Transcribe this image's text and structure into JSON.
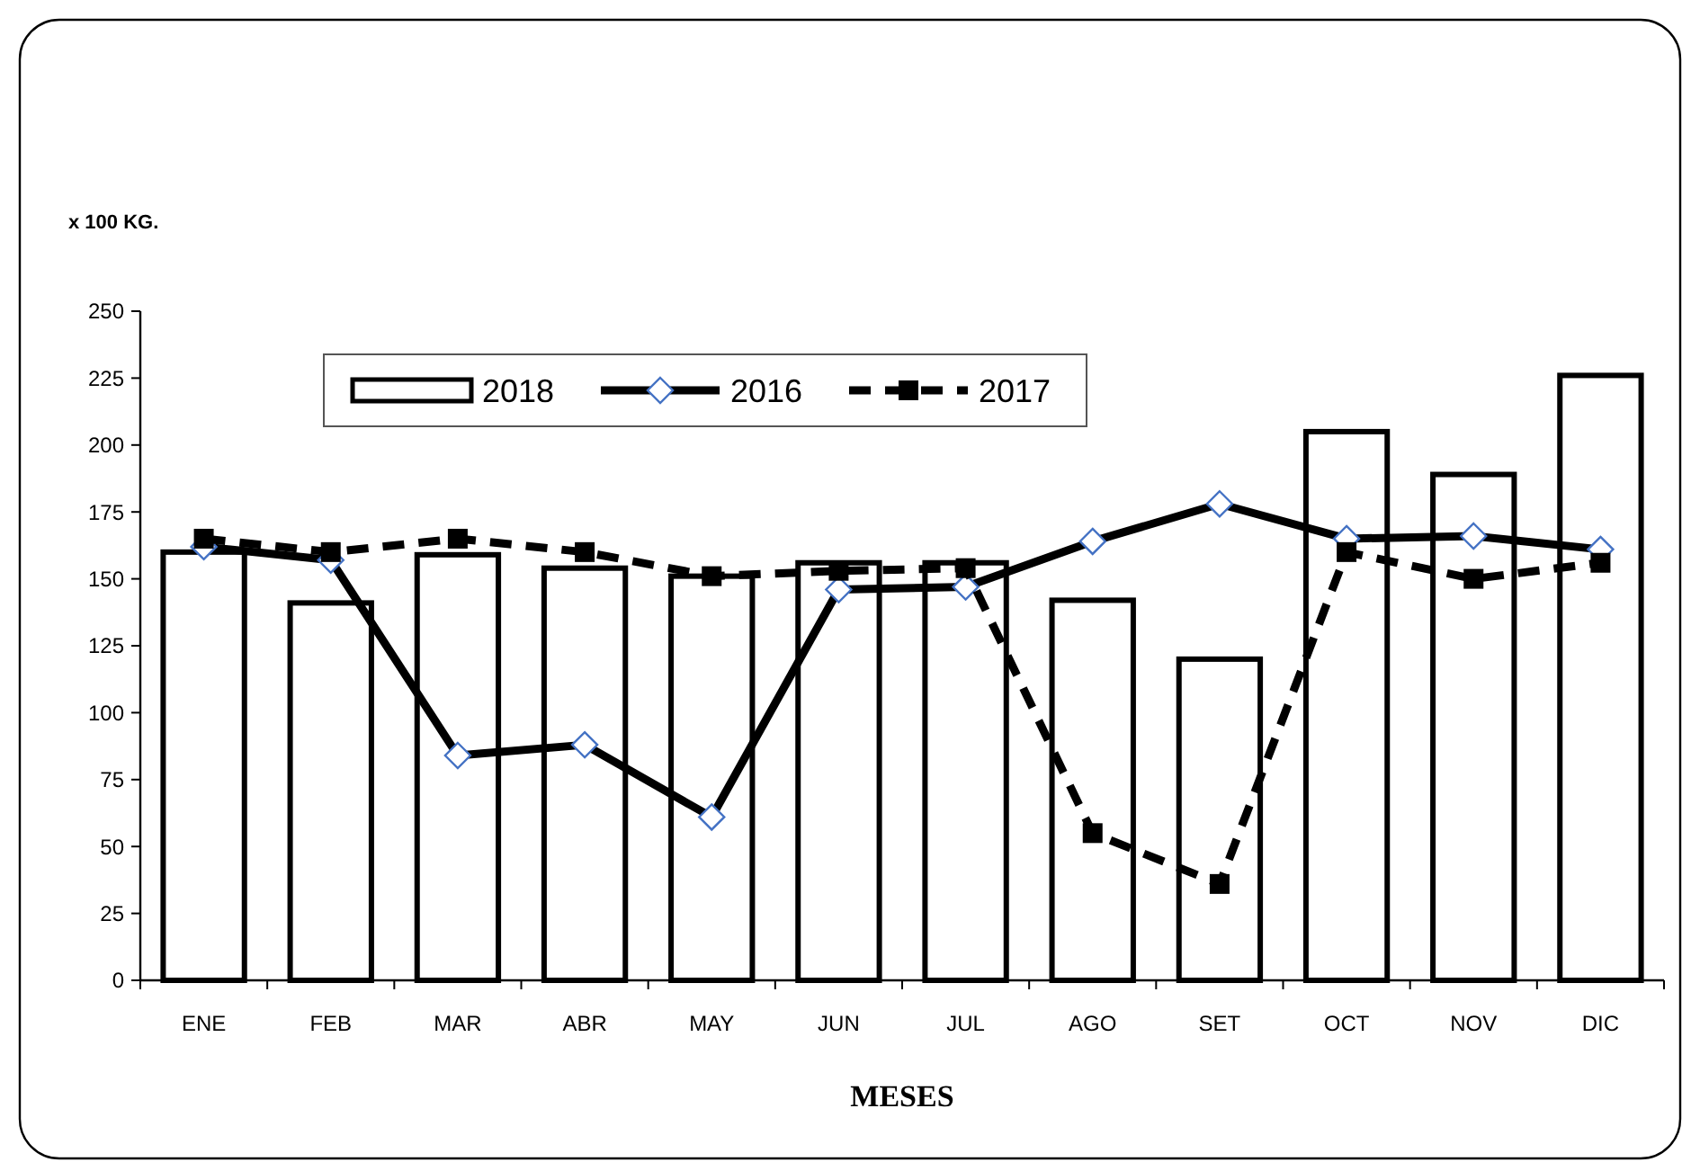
{
  "chart_data": {
    "type": "bar",
    "ylabel": "x 100 KG.",
    "xlabel": "MESES",
    "categories": [
      "ENE",
      "FEB",
      "MAR",
      "ABR",
      "MAY",
      "JUN",
      "JUL",
      "AGO",
      "SET",
      "OCT",
      "NOV",
      "DIC"
    ],
    "series": [
      {
        "name": "2018",
        "color": "#ffffff",
        "values": [
          160,
          141,
          159,
          154,
          151,
          156,
          156,
          142,
          120,
          205,
          189,
          226
        ]
      },
      {
        "name": "2016",
        "type": "line",
        "color": "#000000",
        "marker": "diamond",
        "line_style": "solid",
        "values": [
          162,
          157,
          84,
          88,
          61,
          146,
          147,
          164,
          178,
          165,
          166,
          161
        ]
      },
      {
        "name": "2017",
        "type": "line",
        "color": "#000000",
        "marker": "square",
        "line_style": "dashed",
        "values": [
          165,
          160,
          165,
          160,
          151,
          153,
          154,
          55,
          36,
          160,
          150,
          156
        ]
      }
    ],
    "ylim": [
      0,
      250
    ],
    "yticks": [
      0,
      25,
      50,
      75,
      100,
      125,
      150,
      175,
      200,
      225,
      250
    ],
    "grid": false,
    "legend": "top"
  }
}
